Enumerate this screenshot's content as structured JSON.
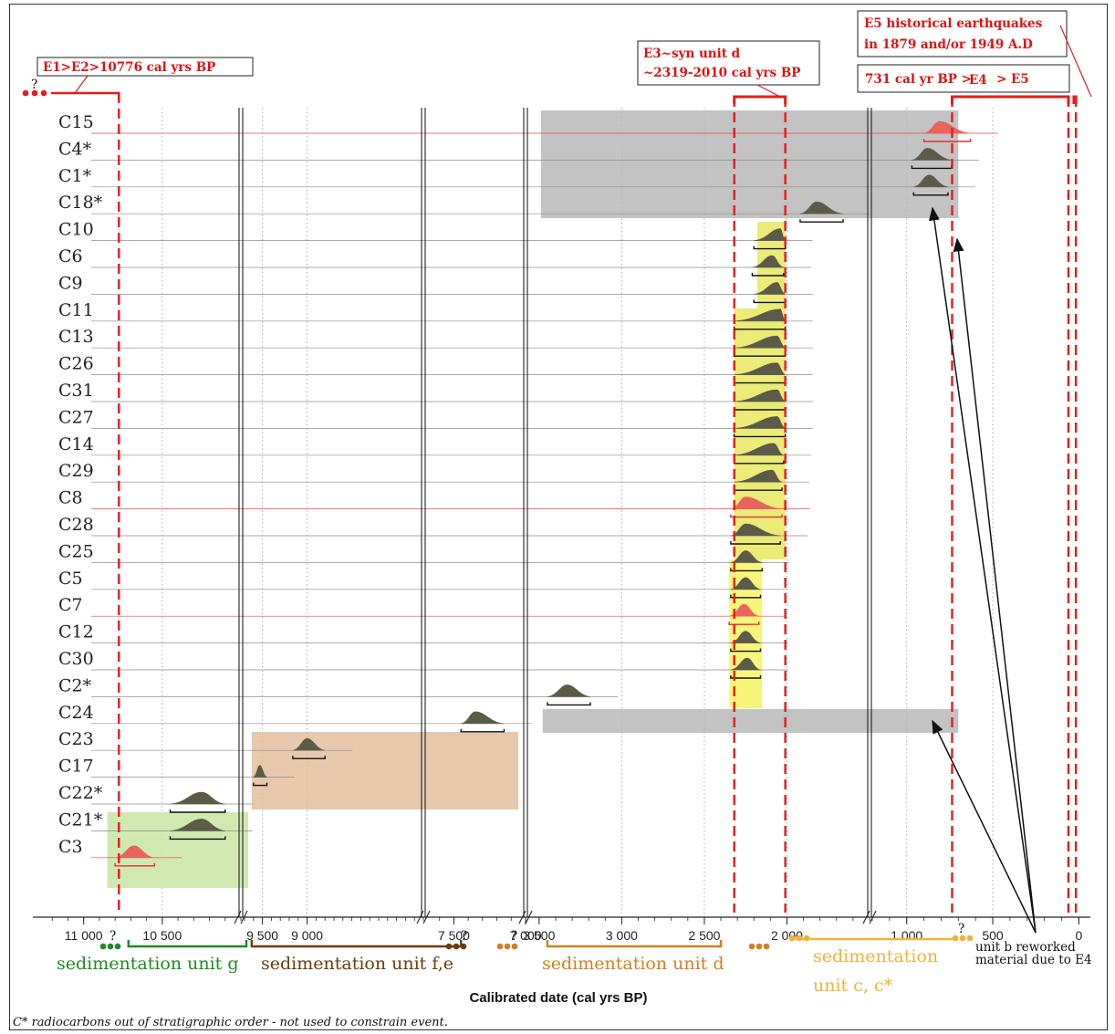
{
  "chart_data": {
    "type": "range_plot",
    "title": "",
    "xlabel": "Calibrated date (cal yrs BP)",
    "x_axis_direction": "reversed",
    "x_axis_breaks": [
      10000,
      7700,
      7000,
      1500
    ],
    "x_ticks": [
      {
        "value": 11000,
        "label": "11 000"
      },
      {
        "value": 10500,
        "label": "10 500"
      },
      {
        "value": 9500,
        "label": "9 500"
      },
      {
        "value": 9000,
        "label": "9 000"
      },
      {
        "value": 7500,
        "label": "7 500"
      },
      {
        "value": 7000,
        "label": "7 000"
      },
      {
        "value": 3500,
        "label": "3 500"
      },
      {
        "value": 3000,
        "label": "3 000"
      },
      {
        "value": 2500,
        "label": "2 500"
      },
      {
        "value": 2000,
        "label": "2 000"
      },
      {
        "value": 1000,
        "label": "1 000"
      },
      {
        "value": 500,
        "label": "500"
      },
      {
        "value": 0,
        "label": "0"
      }
    ],
    "samples": [
      {
        "label": "C15",
        "peak": 810,
        "range": [
          900,
          630
        ],
        "color": "red"
      },
      {
        "label": "C4*",
        "peak": 880,
        "range": [
          970,
          740
        ],
        "color": "dark"
      },
      {
        "label": "C1*",
        "peak": 870,
        "range": [
          960,
          760
        ],
        "color": "dark"
      },
      {
        "label": "C18*",
        "peak": 1820,
        "range": [
          1920,
          1660
        ],
        "color": "dark"
      },
      {
        "label": "C10",
        "peak": 2040,
        "range": [
          2200,
          2010
        ],
        "color": "dark"
      },
      {
        "label": "C6",
        "peak": 2090,
        "range": [
          2210,
          2020
        ],
        "color": "dark"
      },
      {
        "label": "C9",
        "peak": 2060,
        "range": [
          2200,
          2010
        ],
        "color": "dark"
      },
      {
        "label": "C11",
        "peak": 2040,
        "range": [
          2320,
          2010
        ],
        "color": "dark"
      },
      {
        "label": "C13",
        "peak": 2060,
        "range": [
          2320,
          2010
        ],
        "color": "dark"
      },
      {
        "label": "C26",
        "peak": 2060,
        "range": [
          2320,
          2010
        ],
        "color": "dark"
      },
      {
        "label": "C31",
        "peak": 2060,
        "range": [
          2320,
          2010
        ],
        "color": "dark"
      },
      {
        "label": "C27",
        "peak": 2060,
        "range": [
          2320,
          2010
        ],
        "color": "dark"
      },
      {
        "label": "C14",
        "peak": 2080,
        "range": [
          2320,
          2020
        ],
        "color": "dark"
      },
      {
        "label": "C29",
        "peak": 2090,
        "range": [
          2320,
          2030
        ],
        "color": "dark"
      },
      {
        "label": "C8",
        "peak": 2250,
        "range": [
          2340,
          2030
        ],
        "color": "red"
      },
      {
        "label": "C28",
        "peak": 2250,
        "range": [
          2340,
          2040
        ],
        "color": "dark"
      },
      {
        "label": "C25",
        "peak": 2250,
        "range": [
          2340,
          2150
        ],
        "color": "dark"
      },
      {
        "label": "C5",
        "peak": 2250,
        "range": [
          2340,
          2160
        ],
        "color": "dark"
      },
      {
        "label": "C7",
        "peak": 2260,
        "range": [
          2350,
          2170
        ],
        "color": "red"
      },
      {
        "label": "C12",
        "peak": 2250,
        "range": [
          2340,
          2160
        ],
        "color": "dark"
      },
      {
        "label": "C30",
        "peak": 2240,
        "range": [
          2340,
          2160
        ],
        "color": "dark"
      },
      {
        "label": "C2*",
        "peak": 3330,
        "range": [
          3450,
          3190
        ],
        "color": "dark"
      },
      {
        "label": "C24",
        "peak": 7350,
        "range": [
          7450,
          7150
        ],
        "color": "dark"
      },
      {
        "label": "C23",
        "peak": 9000,
        "range": [
          9160,
          8800
        ],
        "color": "dark"
      },
      {
        "label": "C17",
        "peak": 9530,
        "range": [
          9600,
          9450
        ],
        "color": "dark"
      },
      {
        "label": "C22*",
        "peak": 10250,
        "range": [
          10450,
          10100
        ],
        "color": "dark"
      },
      {
        "label": "C21*",
        "peak": 10250,
        "range": [
          10450,
          10100
        ],
        "color": "dark"
      },
      {
        "label": "C3",
        "peak": 10680,
        "range": [
          10800,
          10550
        ],
        "color": "red"
      }
    ],
    "events": [
      {
        "label": "E1>E2>10776 cal yrs BP",
        "value": 10776
      },
      {
        "label": "E3~syn unit d",
        "label2": "~2319-2010 cal yrs BP",
        "range": [
          2319,
          2010
        ]
      },
      {
        "label": "731 cal yr BP >",
        "label_e4": "E4",
        "label_tail": " > E5",
        "range": [
          731,
          0
        ]
      },
      {
        "label": "E5 historical earthquakes",
        "label2": "in 1879 and/or 1949 A.D",
        "values": [
          71,
          1
        ]
      }
    ],
    "units": [
      {
        "label": "sedimentation unit g",
        "color": "#1f8a24"
      },
      {
        "label": "sedimentation unit f,e",
        "color": "#6b3c0e"
      },
      {
        "label": "sedimentation unit d",
        "color": "#d47f1e"
      },
      {
        "label": "sedimentation unit c, c*",
        "line1": "sedimentation",
        "line2": "unit c, c*",
        "color": "#f2b13a"
      }
    ],
    "annotation": {
      "line1": "unit b reworked",
      "line2": "material due to E4"
    },
    "question_mark": "?",
    "footnote": "C* radiocarbons out of  stratigraphic order - not used to constrain event."
  }
}
